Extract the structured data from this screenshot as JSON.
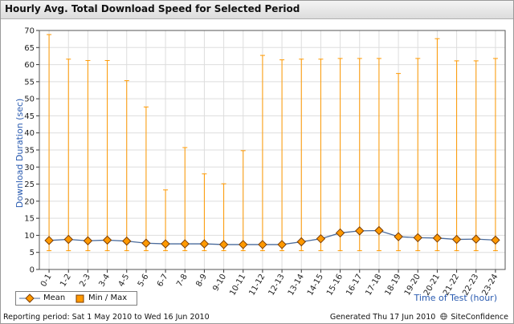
{
  "header": {
    "title": "Hourly Avg. Total Download Speed for Selected Period"
  },
  "footer": {
    "reporting_period": "Reporting period: Sat 1 May 2010 to Wed 16 Jun 2010",
    "generated": "Generated Thu 17 Jun 2010",
    "brand": "SiteConfidence",
    "brand_icon": "globe-icon"
  },
  "legend": {
    "mean_label": "Mean",
    "minmax_label": "Min / Max"
  },
  "colors": {
    "mean_line": "#4a6b9c",
    "marker_fill": "#ff9900",
    "marker_stroke": "#7a3c00",
    "minmax": "#ff9900",
    "axis_label": "#2a5bb0",
    "grid": "#dddddd"
  },
  "chart_data": {
    "type": "line",
    "title": "",
    "xlabel": "Time of Test (hour)",
    "ylabel": "Download Duration (sec)",
    "ylim": [
      0,
      70
    ],
    "yticks": [
      0,
      5,
      10,
      15,
      20,
      25,
      30,
      35,
      40,
      45,
      50,
      55,
      60,
      65,
      70
    ],
    "grid": true,
    "legend_position": "bottom-left",
    "categories": [
      "0-1",
      "1-2",
      "2-3",
      "3-4",
      "4-5",
      "5-6",
      "6-7",
      "7-8",
      "8-9",
      "9-10",
      "10-11",
      "11-12",
      "12-13",
      "13-14",
      "14-15",
      "15-16",
      "16-17",
      "17-18",
      "18-19",
      "19-20",
      "20-21",
      "21-22",
      "22-23",
      "23-24"
    ],
    "series": [
      {
        "name": "Mean",
        "values": [
          8.5,
          8.8,
          8.4,
          8.6,
          8.3,
          7.7,
          7.5,
          7.5,
          7.5,
          7.3,
          7.3,
          7.3,
          7.3,
          8.1,
          9.0,
          10.7,
          11.3,
          11.4,
          9.6,
          9.3,
          9.2,
          8.8,
          8.9,
          8.6
        ]
      },
      {
        "name": "Min / Max",
        "min": [
          5.5,
          5.5,
          5.5,
          5.5,
          5.5,
          5.5,
          5.5,
          5.5,
          5.5,
          5.5,
          5.5,
          5.5,
          5.5,
          5.5,
          5.5,
          5.5,
          5.5,
          5.5,
          5.5,
          5.5,
          5.5,
          5.5,
          5.5,
          5.5
        ],
        "max": [
          68.8,
          61.6,
          61.2,
          61.2,
          55.3,
          47.6,
          23.3,
          35.7,
          28.0,
          25.1,
          34.8,
          62.7,
          61.4,
          61.6,
          61.6,
          61.8,
          61.8,
          61.8,
          57.4,
          61.8,
          67.6,
          61.1,
          61.1,
          61.8
        ]
      }
    ]
  }
}
